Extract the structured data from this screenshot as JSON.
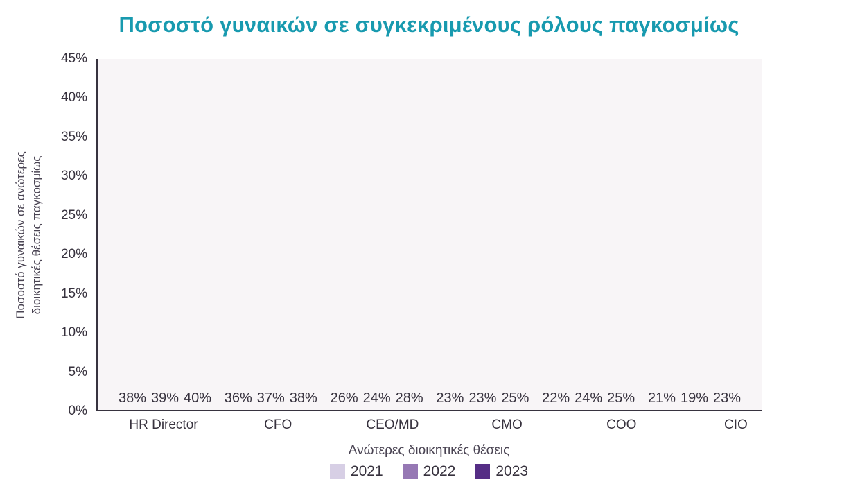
{
  "title": "Ποσοστό γυναικών σε συγκεκριμένους ρόλους παγκοσμίως",
  "colors": {
    "title": "#189aaf",
    "plot_bg": "#f8f5f7",
    "axis_line": "#37333f",
    "text": "#37323e"
  },
  "chart_data": {
    "type": "bar",
    "title": "Ποσοστό γυναικών σε συγκεκριμένους ρόλους παγκοσμίως",
    "xlabel": "Ανώτερες διοικητικές θέσεις",
    "ylabel": "Ποσοστό γυναικών σε ανώτερες διοικητικές θέσεις παγκοσμίως",
    "ylabel_lines": [
      "Ποσοστό γυναικών σε ανώτερες",
      "διοικητικές θέσεις παγκοσμίως"
    ],
    "categories": [
      "HR Director",
      "CFO",
      "CEO/MD",
      "CMO",
      "COO",
      "CIO"
    ],
    "series": [
      {
        "name": "2021",
        "color": "#d7cfe5",
        "values": [
          38,
          36,
          26,
          23,
          22,
          21
        ]
      },
      {
        "name": "2022",
        "color": "#9678b4",
        "values": [
          39,
          37,
          24,
          23,
          24,
          19
        ]
      },
      {
        "name": "2023",
        "color": "#552d85",
        "values": [
          40,
          38,
          28,
          25,
          25,
          23
        ]
      }
    ],
    "ylim": [
      0,
      45
    ],
    "ytick_step": 5,
    "ytick_suffix": "%",
    "label_suffix": "%",
    "grid": false,
    "legend_position": "bottom"
  }
}
